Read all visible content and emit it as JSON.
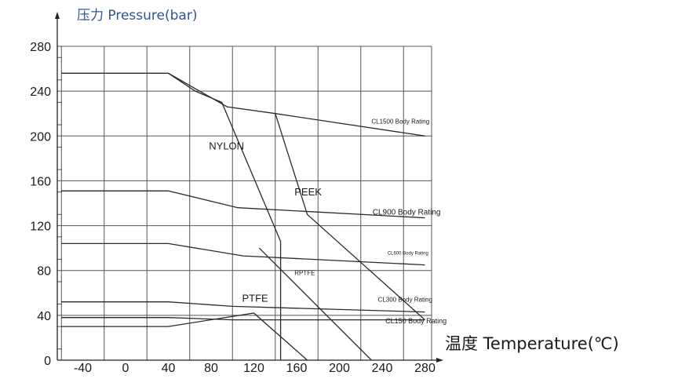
{
  "chart_data": {
    "type": "line",
    "ylabel": "压力 Pressure(bar)",
    "xlabel": "温度 Temperature(℃)",
    "xlim": [
      -60,
      280
    ],
    "ylim": [
      0,
      280
    ],
    "x_ticks": [
      -40,
      0,
      40,
      80,
      120,
      160,
      200,
      240,
      280
    ],
    "y_ticks": [
      0,
      40,
      80,
      120,
      160,
      200,
      240,
      280
    ],
    "grid": true,
    "series": [
      {
        "name": "CL1500 Body Rating",
        "x": [
          -60,
          40,
          95,
          140,
          280
        ],
        "y": [
          256,
          256,
          226,
          220,
          200
        ]
      },
      {
        "name": "CL900 Body Rating",
        "x": [
          -60,
          40,
          105,
          280
        ],
        "y": [
          151,
          151,
          136,
          127
        ]
      },
      {
        "name": "CL600 Body Rating",
        "x": [
          -60,
          40,
          110,
          280
        ],
        "y": [
          104,
          104,
          93,
          85
        ]
      },
      {
        "name": "CL300 Body Rating",
        "x": [
          -60,
          40,
          100,
          280
        ],
        "y": [
          52,
          52,
          48,
          43
        ]
      },
      {
        "name": "CL150 Body Rating",
        "x": [
          -60,
          40,
          100,
          280
        ],
        "y": [
          38,
          38,
          36,
          36
        ]
      },
      {
        "name": "NYLON",
        "x": [
          40,
          65,
          90,
          145,
          145
        ],
        "y": [
          256,
          240,
          230,
          106,
          0
        ]
      },
      {
        "name": "PEEK",
        "x": [
          140,
          170,
          280
        ],
        "y": [
          220,
          130,
          36
        ]
      },
      {
        "name": "RPTFE",
        "x": [
          125,
          230
        ],
        "y": [
          100,
          0
        ]
      },
      {
        "name": "PTFE",
        "x": [
          -60,
          40,
          120,
          170
        ],
        "y": [
          30,
          30,
          42,
          0
        ]
      }
    ],
    "curve_labels": [
      {
        "text": "NYLON",
        "x": 78,
        "y": 188
      },
      {
        "text": "PEEK",
        "x": 158,
        "y": 147
      },
      {
        "text": "PTFE",
        "x": 109,
        "y": 52
      }
    ],
    "rating_labels": [
      {
        "text": "CL1500 Body Rating",
        "x": 230,
        "y": 211,
        "size": 8
      },
      {
        "text": "CL900 Body Rating",
        "x": 231,
        "y": 130,
        "size": 10
      },
      {
        "text": "CL600 Body Rating",
        "x": 245,
        "y": 94,
        "size": 6
      },
      {
        "text": "RPTFE",
        "x": 158,
        "y": 76,
        "size": 8
      },
      {
        "text": "CL300 Body Rating",
        "x": 236,
        "y": 52,
        "size": 8
      },
      {
        "text": "CL150 Body Rating",
        "x": 243,
        "y": 33,
        "size": 9
      }
    ]
  }
}
